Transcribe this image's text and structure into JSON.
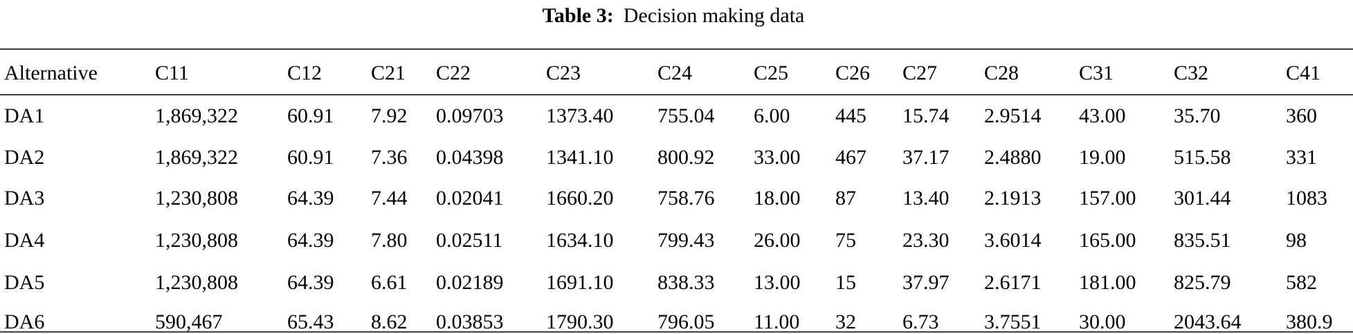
{
  "title": {
    "label": "Table 3:",
    "text": "Decision making data"
  },
  "table": {
    "header": [
      "Alternative",
      "C11",
      "C12",
      "C21",
      "C22",
      "C23",
      "C24",
      "C25",
      "C26",
      "C27",
      "C28",
      "C31",
      "C32",
      "C41"
    ],
    "rows": [
      [
        "DA1",
        "1,869,322",
        "60.91",
        "7.92",
        "0.09703",
        "1373.40",
        "755.04",
        "6.00",
        "445",
        "15.74",
        "2.9514",
        "43.00",
        "35.70",
        "360"
      ],
      [
        "DA2",
        "1,869,322",
        "60.91",
        "7.36",
        "0.04398",
        "1341.10",
        "800.92",
        "33.00",
        "467",
        "37.17",
        "2.4880",
        "19.00",
        "515.58",
        "331"
      ],
      [
        "DA3",
        "1,230,808",
        "64.39",
        "7.44",
        "0.02041",
        "1660.20",
        "758.76",
        "18.00",
        "87",
        "13.40",
        "2.1913",
        "157.00",
        "301.44",
        "1083"
      ],
      [
        "DA4",
        "1,230,808",
        "64.39",
        "7.80",
        "0.02511",
        "1634.10",
        "799.43",
        "26.00",
        "75",
        "23.30",
        "3.6014",
        "165.00",
        "835.51",
        "98"
      ],
      [
        "DA5",
        "1,230,808",
        "64.39",
        "6.61",
        "0.02189",
        "1691.10",
        "838.33",
        "13.00",
        "15",
        "37.97",
        "2.6171",
        "181.00",
        "825.79",
        "582"
      ],
      [
        "DA6",
        "590,467",
        "65.43",
        "8.62",
        "0.03853",
        "1790.30",
        "796.05",
        "11.00",
        "32",
        "6.73",
        "3.7551",
        "30.00",
        "2043.64",
        "380.9"
      ]
    ]
  }
}
